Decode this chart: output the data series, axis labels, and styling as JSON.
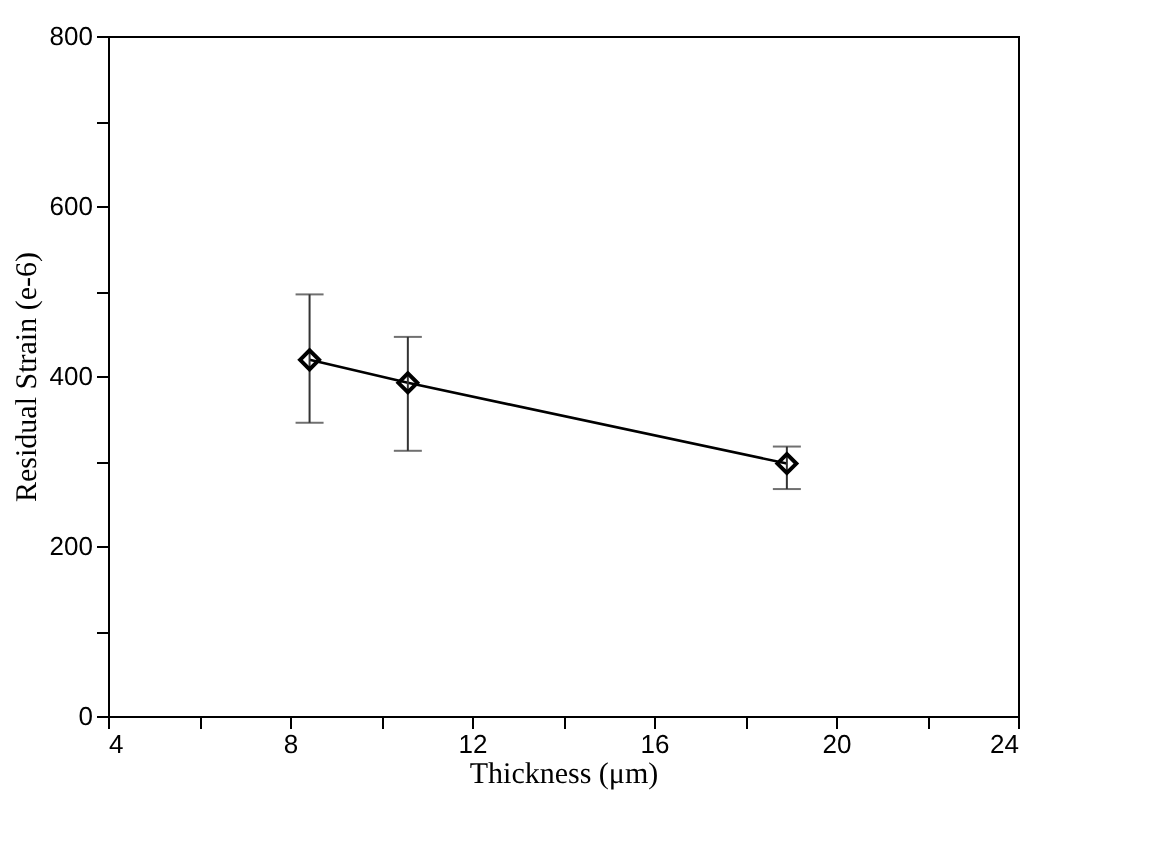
{
  "chart_data": {
    "type": "line",
    "xlabel": "Thickness (μm)",
    "ylabel": "Residual Strain (e-6)",
    "x": [
      8.43,
      10.59,
      18.92
    ],
    "series": [
      {
        "color": "#000000",
        "values": [
          419,
          392,
          297
        ],
        "errors": [
          [
            345,
            496
          ],
          [
            312,
            446
          ],
          [
            267,
            317
          ]
        ]
      }
    ],
    "xlim": [
      4,
      24
    ],
    "xticks": [
      4,
      {
        "value": 6,
        "label": null
      },
      8,
      {
        "value": 10,
        "label": null
      },
      12,
      {
        "value": 14,
        "label": null
      },
      16,
      {
        "value": 18,
        "label": null
      },
      20,
      {
        "value": 22,
        "label": null
      },
      24
    ],
    "ylim": [
      0,
      800
    ],
    "yticks": [
      0,
      {
        "value": 100,
        "label": null
      },
      200,
      {
        "value": 300,
        "label": null
      },
      400,
      {
        "value": 500,
        "label": null
      },
      600,
      {
        "value": 700,
        "label": null
      },
      800
    ],
    "marker": "diamond",
    "line_style": "solid",
    "grid": false
  }
}
